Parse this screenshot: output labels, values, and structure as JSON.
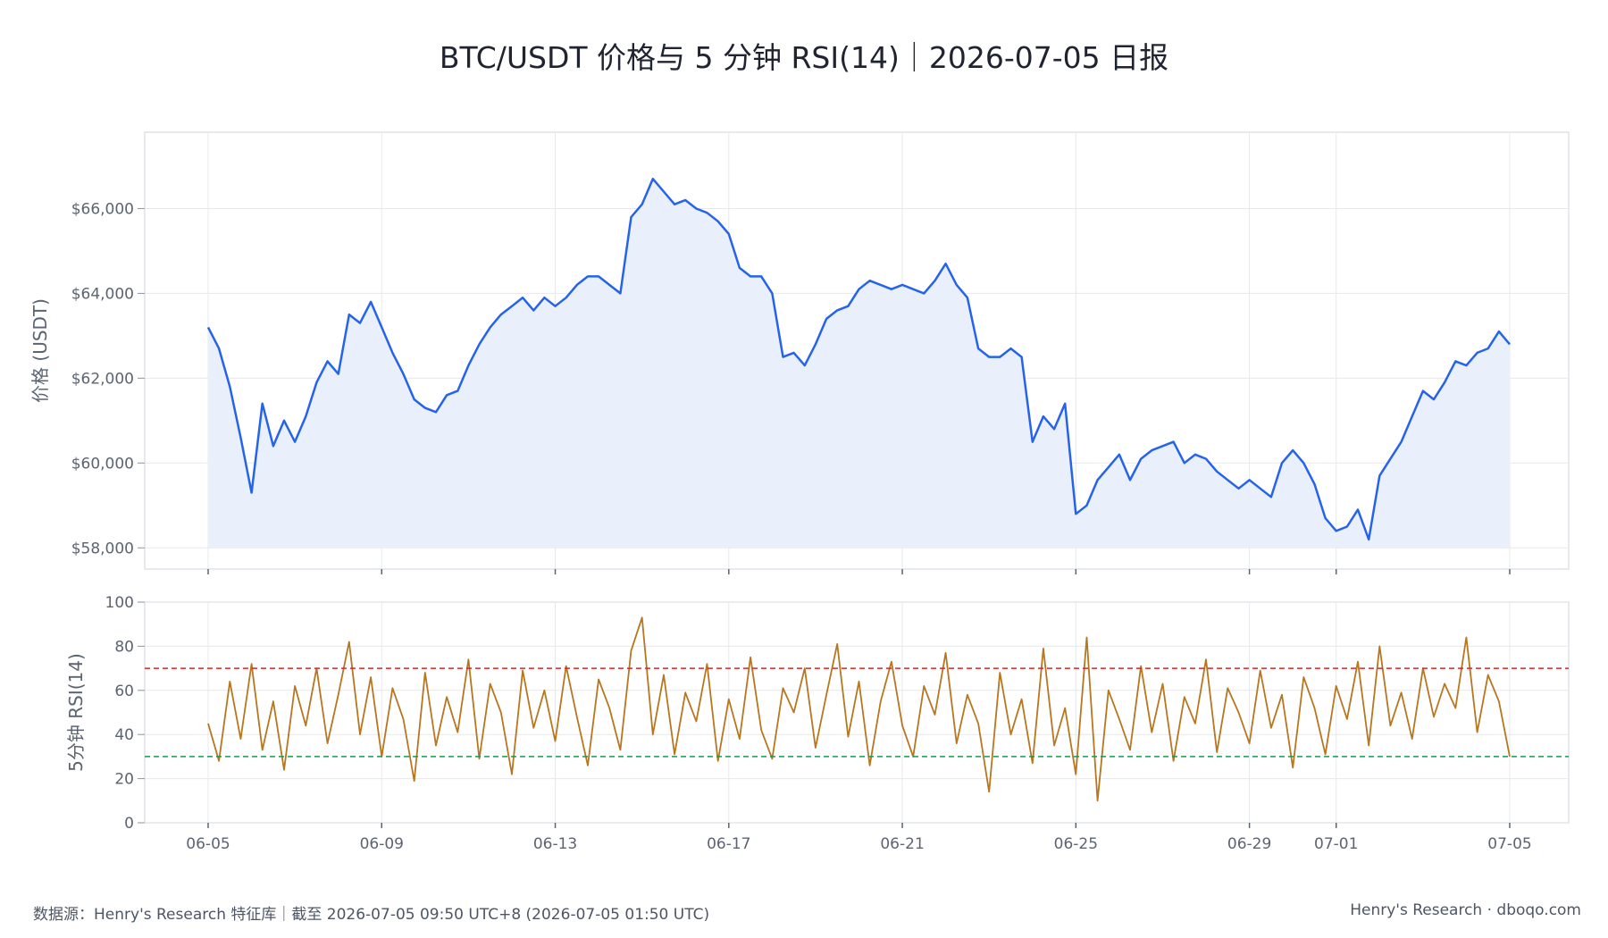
{
  "title": "BTC/USDT 价格与 5 分钟 RSI(14)｜2026-07-05 日报",
  "footer": {
    "source": "数据源：Henry's Research 特征库｜截至 2026-07-05 09:50 UTC+8 (2026-07-05 01:50 UTC)",
    "brand": "Henry's Research · dboqo.com"
  },
  "colors": {
    "price_line": "#2563eb",
    "price_fill": "#eaf0fb",
    "rsi_line": "#b8761f",
    "overbought": "#d62728",
    "oversold": "#1a9850",
    "grid": "#e6e8ec",
    "frame": "#dfe2e8"
  },
  "chart_data": [
    {
      "type": "area",
      "name": "price",
      "ylabel": "价格 (USDT)",
      "ylim": [
        57500,
        67800
      ],
      "yticks": [
        58000,
        60000,
        62000,
        64000,
        66000
      ],
      "ytick_labels": [
        "$58,000",
        "$60,000",
        "$62,000",
        "$64,000",
        "$66,000"
      ],
      "grid": true,
      "fill_baseline": 58000,
      "series": [
        {
          "x": [
            "2026-06-05 00:00",
            "2026-06-05 06:00",
            "2026-06-05 12:00",
            "2026-06-05 18:00",
            "2026-06-06 00:00",
            "2026-06-06 06:00",
            "2026-06-06 12:00",
            "2026-06-06 18:00",
            "2026-06-07 00:00",
            "2026-06-07 06:00",
            "2026-06-07 12:00",
            "2026-06-07 18:00",
            "2026-06-08 00:00",
            "2026-06-08 06:00",
            "2026-06-08 12:00",
            "2026-06-08 18:00",
            "2026-06-09 00:00",
            "2026-06-09 06:00",
            "2026-06-09 12:00",
            "2026-06-09 18:00",
            "2026-06-10 00:00",
            "2026-06-10 06:00",
            "2026-06-10 12:00",
            "2026-06-10 18:00",
            "2026-06-11 00:00",
            "2026-06-11 06:00",
            "2026-06-11 12:00",
            "2026-06-11 18:00",
            "2026-06-12 00:00",
            "2026-06-12 06:00",
            "2026-06-12 12:00",
            "2026-06-12 18:00",
            "2026-06-13 00:00",
            "2026-06-13 06:00",
            "2026-06-13 12:00",
            "2026-06-13 18:00",
            "2026-06-14 00:00",
            "2026-06-14 06:00",
            "2026-06-14 12:00",
            "2026-06-14 18:00",
            "2026-06-15 00:00",
            "2026-06-15 06:00",
            "2026-06-15 12:00",
            "2026-06-15 18:00",
            "2026-06-16 00:00",
            "2026-06-16 06:00",
            "2026-06-16 12:00",
            "2026-06-16 18:00",
            "2026-06-17 00:00",
            "2026-06-17 06:00",
            "2026-06-17 12:00",
            "2026-06-17 18:00",
            "2026-06-18 00:00",
            "2026-06-18 06:00",
            "2026-06-18 12:00",
            "2026-06-18 18:00",
            "2026-06-19 00:00",
            "2026-06-19 06:00",
            "2026-06-19 12:00",
            "2026-06-19 18:00",
            "2026-06-20 00:00",
            "2026-06-20 06:00",
            "2026-06-20 12:00",
            "2026-06-20 18:00",
            "2026-06-21 00:00",
            "2026-06-21 06:00",
            "2026-06-21 12:00",
            "2026-06-21 18:00",
            "2026-06-22 00:00",
            "2026-06-22 06:00",
            "2026-06-22 12:00",
            "2026-06-22 18:00",
            "2026-06-23 00:00",
            "2026-06-23 06:00",
            "2026-06-23 12:00",
            "2026-06-23 18:00",
            "2026-06-24 00:00",
            "2026-06-24 06:00",
            "2026-06-24 12:00",
            "2026-06-24 18:00",
            "2026-06-25 00:00",
            "2026-06-25 06:00",
            "2026-06-25 12:00",
            "2026-06-25 18:00",
            "2026-06-26 00:00",
            "2026-06-26 06:00",
            "2026-06-26 12:00",
            "2026-06-26 18:00",
            "2026-06-27 00:00",
            "2026-06-27 06:00",
            "2026-06-27 12:00",
            "2026-06-27 18:00",
            "2026-06-28 00:00",
            "2026-06-28 06:00",
            "2026-06-28 12:00",
            "2026-06-28 18:00",
            "2026-06-29 00:00",
            "2026-06-29 06:00",
            "2026-06-29 12:00",
            "2026-06-29 18:00",
            "2026-06-30 00:00",
            "2026-06-30 06:00",
            "2026-06-30 12:00",
            "2026-06-30 18:00",
            "2026-07-01 00:00",
            "2026-07-01 06:00",
            "2026-07-01 12:00",
            "2026-07-01 18:00",
            "2026-07-02 00:00",
            "2026-07-02 06:00",
            "2026-07-02 12:00",
            "2026-07-02 18:00",
            "2026-07-03 00:00",
            "2026-07-03 06:00",
            "2026-07-03 12:00",
            "2026-07-03 18:00",
            "2026-07-04 00:00",
            "2026-07-04 06:00",
            "2026-07-04 12:00",
            "2026-07-04 18:00",
            "2026-07-05 00:00"
          ],
          "y": [
            63200,
            62700,
            61800,
            60600,
            59300,
            61400,
            60400,
            61000,
            60500,
            61100,
            61900,
            62400,
            62100,
            63500,
            63300,
            63800,
            63200,
            62600,
            62100,
            61500,
            61300,
            61200,
            61600,
            61700,
            62300,
            62800,
            63200,
            63500,
            63700,
            63900,
            63600,
            63900,
            63700,
            63900,
            64200,
            64400,
            64400,
            64200,
            64000,
            65800,
            66100,
            66700,
            66400,
            66100,
            66200,
            66000,
            65900,
            65700,
            65400,
            64600,
            64400,
            64400,
            64000,
            62500,
            62600,
            62300,
            62800,
            63400,
            63600,
            63700,
            64100,
            64300,
            64200,
            64100,
            64200,
            64100,
            64000,
            64300,
            64700,
            64200,
            63900,
            62700,
            62500,
            62500,
            62700,
            62500,
            60500,
            61100,
            60800,
            61400,
            58800,
            59000,
            59600,
            59900,
            60200,
            59600,
            60100,
            60300,
            60400,
            60500,
            60000,
            60200,
            60100,
            59800,
            59600,
            59400,
            59600,
            59400,
            59200,
            60000,
            60300,
            60000,
            59500,
            58700,
            58400,
            58500,
            58900,
            58200,
            59700,
            60100,
            60500,
            61100,
            61700,
            61500,
            61900,
            62400,
            62300,
            62600,
            62700,
            63100,
            62800
          ]
        }
      ]
    },
    {
      "type": "line",
      "name": "rsi",
      "ylabel": "5分钟 RSI(14)",
      "ylim": [
        0,
        100
      ],
      "yticks": [
        0,
        20,
        40,
        60,
        80,
        100
      ],
      "ytick_labels": [
        "0",
        "20",
        "40",
        "60",
        "80",
        "100"
      ],
      "grid": true,
      "thresholds": {
        "overbought": 70,
        "oversold": 30
      },
      "series": [
        {
          "x": [
            "2026-06-05 00:00",
            "2026-06-05 06:00",
            "2026-06-05 12:00",
            "2026-06-05 18:00",
            "2026-06-06 00:00",
            "2026-06-06 06:00",
            "2026-06-06 12:00",
            "2026-06-06 18:00",
            "2026-06-07 00:00",
            "2026-06-07 06:00",
            "2026-06-07 12:00",
            "2026-06-07 18:00",
            "2026-06-08 00:00",
            "2026-06-08 06:00",
            "2026-06-08 12:00",
            "2026-06-08 18:00",
            "2026-06-09 00:00",
            "2026-06-09 06:00",
            "2026-06-09 12:00",
            "2026-06-09 18:00",
            "2026-06-10 00:00",
            "2026-06-10 06:00",
            "2026-06-10 12:00",
            "2026-06-10 18:00",
            "2026-06-11 00:00",
            "2026-06-11 06:00",
            "2026-06-11 12:00",
            "2026-06-11 18:00",
            "2026-06-12 00:00",
            "2026-06-12 06:00",
            "2026-06-12 12:00",
            "2026-06-12 18:00",
            "2026-06-13 00:00",
            "2026-06-13 06:00",
            "2026-06-13 12:00",
            "2026-06-13 18:00",
            "2026-06-14 00:00",
            "2026-06-14 06:00",
            "2026-06-14 12:00",
            "2026-06-14 18:00",
            "2026-06-15 00:00",
            "2026-06-15 06:00",
            "2026-06-15 12:00",
            "2026-06-15 18:00",
            "2026-06-16 00:00",
            "2026-06-16 06:00",
            "2026-06-16 12:00",
            "2026-06-16 18:00",
            "2026-06-17 00:00",
            "2026-06-17 06:00",
            "2026-06-17 12:00",
            "2026-06-17 18:00",
            "2026-06-18 00:00",
            "2026-06-18 06:00",
            "2026-06-18 12:00",
            "2026-06-18 18:00",
            "2026-06-19 00:00",
            "2026-06-19 06:00",
            "2026-06-19 12:00",
            "2026-06-19 18:00",
            "2026-06-20 00:00",
            "2026-06-20 06:00",
            "2026-06-20 12:00",
            "2026-06-20 18:00",
            "2026-06-21 00:00",
            "2026-06-21 06:00",
            "2026-06-21 12:00",
            "2026-06-21 18:00",
            "2026-06-22 00:00",
            "2026-06-22 06:00",
            "2026-06-22 12:00",
            "2026-06-22 18:00",
            "2026-06-23 00:00",
            "2026-06-23 06:00",
            "2026-06-23 12:00",
            "2026-06-23 18:00",
            "2026-06-24 00:00",
            "2026-06-24 06:00",
            "2026-06-24 12:00",
            "2026-06-24 18:00",
            "2026-06-25 00:00",
            "2026-06-25 06:00",
            "2026-06-25 12:00",
            "2026-06-25 18:00",
            "2026-06-26 00:00",
            "2026-06-26 06:00",
            "2026-06-26 12:00",
            "2026-06-26 18:00",
            "2026-06-27 00:00",
            "2026-06-27 06:00",
            "2026-06-27 12:00",
            "2026-06-27 18:00",
            "2026-06-28 00:00",
            "2026-06-28 06:00",
            "2026-06-28 12:00",
            "2026-06-28 18:00",
            "2026-06-29 00:00",
            "2026-06-29 06:00",
            "2026-06-29 12:00",
            "2026-06-29 18:00",
            "2026-06-30 00:00",
            "2026-06-30 06:00",
            "2026-06-30 12:00",
            "2026-06-30 18:00",
            "2026-07-01 00:00",
            "2026-07-01 06:00",
            "2026-07-01 12:00",
            "2026-07-01 18:00",
            "2026-07-02 00:00",
            "2026-07-02 06:00",
            "2026-07-02 12:00",
            "2026-07-02 18:00",
            "2026-07-03 00:00",
            "2026-07-03 06:00",
            "2026-07-03 12:00",
            "2026-07-03 18:00",
            "2026-07-04 00:00",
            "2026-07-04 06:00",
            "2026-07-04 12:00",
            "2026-07-04 18:00",
            "2026-07-05 00:00"
          ],
          "y": [
            45,
            28,
            64,
            38,
            72,
            33,
            55,
            24,
            62,
            44,
            70,
            36,
            58,
            82,
            40,
            66,
            30,
            61,
            47,
            19,
            68,
            35,
            57,
            41,
            74,
            29,
            63,
            50,
            22,
            69,
            43,
            60,
            37,
            71,
            48,
            26,
            65,
            52,
            33,
            78,
            93,
            40,
            67,
            31,
            59,
            46,
            72,
            28,
            56,
            38,
            75,
            42,
            29,
            61,
            50,
            70,
            34,
            58,
            81,
            39,
            64,
            26,
            55,
            73,
            44,
            30,
            62,
            49,
            77,
            36,
            58,
            45,
            14,
            68,
            40,
            56,
            27,
            79,
            35,
            52,
            22,
            84,
            10,
            60,
            47,
            33,
            71,
            41,
            63,
            28,
            57,
            45,
            74,
            32,
            61,
            50,
            36,
            69,
            43,
            58,
            25,
            66,
            52,
            31,
            62,
            47,
            73,
            35,
            80,
            44,
            59,
            38,
            70,
            48,
            63,
            52,
            84,
            41,
            67,
            55,
            30
          ]
        }
      ]
    }
  ],
  "xaxis": {
    "ticks": [
      "06-05",
      "06-09",
      "06-13",
      "06-17",
      "06-21",
      "06-25",
      "06-29",
      "07-01",
      "07-05"
    ],
    "tick_dates": [
      "2026-06-05",
      "2026-06-09",
      "2026-06-13",
      "2026-06-17",
      "2026-06-21",
      "2026-06-25",
      "2026-06-29",
      "2026-07-01",
      "2026-07-05"
    ]
  }
}
